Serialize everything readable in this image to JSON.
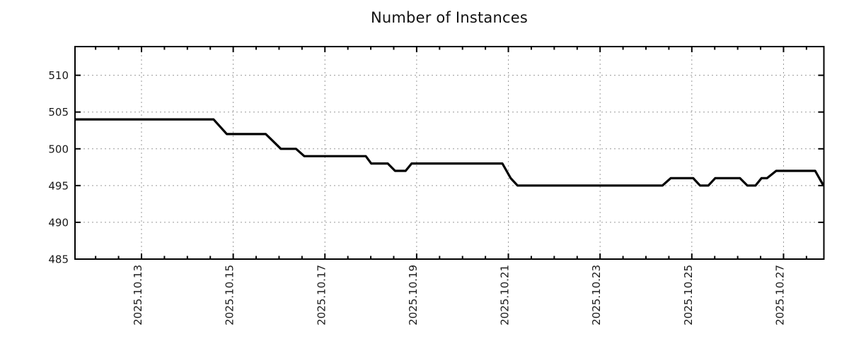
{
  "chart_data": {
    "type": "line",
    "title": "Number of Instances",
    "legend": false,
    "grid": true,
    "colors": {
      "line": "#000000",
      "grid": "#999999",
      "axis": "#000000",
      "text": "#1a1a1a",
      "background": "#ffffff"
    },
    "x_axis": {
      "kind": "date",
      "month_context": "October 2025",
      "tick_labels": [
        "2025.10.13",
        "2025.10.15",
        "2025.10.17",
        "2025.10.19",
        "2025.10.21",
        "2025.10.23",
        "2025.10.25",
        "2025.10.27"
      ],
      "tick_days": [
        13,
        15,
        17,
        19,
        21,
        23,
        25,
        27
      ],
      "minor_tick_interval_days": 0.5,
      "range_days": [
        11.55,
        27.88
      ]
    },
    "y_axis": {
      "tick_labels": [
        "485",
        "490",
        "495",
        "500",
        "505",
        "510"
      ],
      "tick_values": [
        485,
        490,
        495,
        500,
        505,
        510
      ],
      "gridline_values": [
        490,
        495,
        500,
        505,
        510
      ],
      "range": [
        485,
        513.9
      ]
    },
    "series": [
      {
        "name": "Number of Instances",
        "points_format": "[day_of_october_2025_decimal, instance_count]",
        "points": [
          [
            11.55,
            504
          ],
          [
            14.57,
            504
          ],
          [
            14.86,
            502
          ],
          [
            15.71,
            502
          ],
          [
            16.04,
            500
          ],
          [
            16.37,
            500
          ],
          [
            16.55,
            499
          ],
          [
            17.89,
            499
          ],
          [
            18.01,
            498
          ],
          [
            18.37,
            498
          ],
          [
            18.53,
            497
          ],
          [
            18.76,
            497
          ],
          [
            18.89,
            498
          ],
          [
            20.87,
            498
          ],
          [
            21.05,
            496
          ],
          [
            21.2,
            495
          ],
          [
            24.36,
            495
          ],
          [
            24.54,
            496
          ],
          [
            25.03,
            496
          ],
          [
            25.18,
            495
          ],
          [
            25.36,
            495
          ],
          [
            25.51,
            496
          ],
          [
            26.05,
            496
          ],
          [
            26.21,
            495
          ],
          [
            26.39,
            495
          ],
          [
            26.52,
            496
          ],
          [
            26.64,
            496
          ],
          [
            26.84,
            497
          ],
          [
            27.69,
            497
          ],
          [
            27.87,
            495
          ]
        ]
      }
    ]
  }
}
